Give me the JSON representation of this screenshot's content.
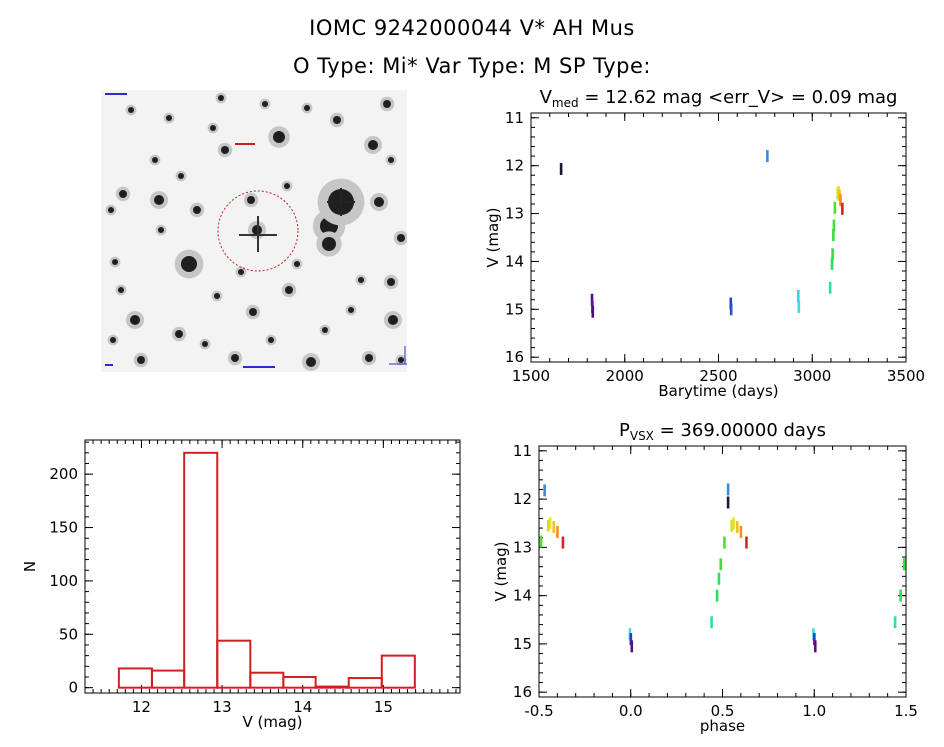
{
  "header": {
    "line1": "IOMC 9242000044    V* AH Mus",
    "line2": "O Type: Mi*   Var Type: M   SP Type:"
  },
  "colors": {
    "histogram": "#d21f1f",
    "aperture": "#c81e1e",
    "sky_labels": "#2b2bd6"
  },
  "chart_data": [
    {
      "type": "scatter",
      "panel": "light-curve",
      "title": "V_med = 12.62 mag <err_V> = 0.09 mag",
      "title_parts": {
        "prefix": "V",
        "sub": "med",
        "rest": " = 12.62 mag <err_V> = 0.09 mag"
      },
      "xlabel": "Barytime (days)",
      "ylabel": "V (mag)",
      "xlim": [
        1500,
        3500
      ],
      "ylim": [
        16.1,
        10.9
      ],
      "y_inverted": true,
      "xticks": [
        1500,
        2000,
        2500,
        3000,
        3500
      ],
      "yticks": [
        11,
        12,
        13,
        14,
        15,
        16
      ],
      "points": [
        {
          "x": 1660,
          "y": 12.07,
          "c": "#1a1a2e"
        },
        {
          "x": 1825,
          "y": 14.8,
          "c": "#5a0a8c"
        },
        {
          "x": 1827,
          "y": 14.95,
          "c": "#6a14a0"
        },
        {
          "x": 1829,
          "y": 15.05,
          "c": "#4b0c80"
        },
        {
          "x": 2565,
          "y": 14.88,
          "c": "#1d44b8"
        },
        {
          "x": 2567,
          "y": 15.0,
          "c": "#2a50c8"
        },
        {
          "x": 2760,
          "y": 11.8,
          "c": "#3a8ad8"
        },
        {
          "x": 2925,
          "y": 14.72,
          "c": "#35d0e0"
        },
        {
          "x": 2928,
          "y": 14.95,
          "c": "#40d8e8"
        },
        {
          "x": 3095,
          "y": 14.55,
          "c": "#30e0a0"
        },
        {
          "x": 3105,
          "y": 14.05,
          "c": "#28e060"
        },
        {
          "x": 3108,
          "y": 13.85,
          "c": "#30e050"
        },
        {
          "x": 3112,
          "y": 13.45,
          "c": "#38e040"
        },
        {
          "x": 3115,
          "y": 13.25,
          "c": "#40e038"
        },
        {
          "x": 3120,
          "y": 12.88,
          "c": "#50e030"
        },
        {
          "x": 3135,
          "y": 12.58,
          "c": "#c8e020"
        },
        {
          "x": 3140,
          "y": 12.55,
          "c": "#f0e020"
        },
        {
          "x": 3145,
          "y": 12.62,
          "c": "#f0c020"
        },
        {
          "x": 3150,
          "y": 12.72,
          "c": "#f09020"
        },
        {
          "x": 3160,
          "y": 12.9,
          "c": "#e02020"
        }
      ]
    },
    {
      "type": "bar",
      "panel": "histogram",
      "xlabel": "V (mag)",
      "ylabel": "N",
      "xlim": [
        11.3,
        15.95
      ],
      "ylim": [
        -5,
        232
      ],
      "xticks": [
        12,
        13,
        14,
        15
      ],
      "yticks": [
        0,
        50,
        100,
        150,
        200
      ],
      "bins": [
        {
          "x0": 11.72,
          "x1": 12.13,
          "n": 18
        },
        {
          "x0": 12.13,
          "x1": 12.53,
          "n": 16
        },
        {
          "x0": 12.53,
          "x1": 12.94,
          "n": 220
        },
        {
          "x0": 12.94,
          "x1": 13.35,
          "n": 44
        },
        {
          "x0": 13.35,
          "x1": 13.76,
          "n": 14
        },
        {
          "x0": 13.76,
          "x1": 14.16,
          "n": 10
        },
        {
          "x0": 14.16,
          "x1": 14.57,
          "n": 1
        },
        {
          "x0": 14.57,
          "x1": 14.98,
          "n": 9
        },
        {
          "x0": 14.98,
          "x1": 15.39,
          "n": 30
        }
      ]
    },
    {
      "type": "scatter",
      "panel": "phase-curve",
      "title": "P_vsx = 369.00000 days",
      "title_parts": {
        "prefix": "P",
        "sub": "VSX",
        "rest": " = 369.00000 days"
      },
      "xlabel": "phase",
      "ylabel": "V (mag)",
      "xlim": [
        -0.5,
        1.5
      ],
      "ylim": [
        16.1,
        10.9
      ],
      "y_inverted": true,
      "xticks": [
        -0.5,
        0.0,
        0.5,
        1.0,
        1.5
      ],
      "yticks": [
        11,
        12,
        13,
        14,
        15,
        16
      ],
      "points": [
        {
          "x": -0.47,
          "y": 11.82,
          "c": "#3a8ad8"
        },
        {
          "x": -0.49,
          "y": 12.88,
          "c": "#50e030"
        },
        {
          "x": -0.45,
          "y": 12.55,
          "c": "#c8e020"
        },
        {
          "x": -0.44,
          "y": 12.5,
          "c": "#f0e020"
        },
        {
          "x": -0.42,
          "y": 12.58,
          "c": "#f0c020"
        },
        {
          "x": -0.4,
          "y": 12.68,
          "c": "#f09020"
        },
        {
          "x": -0.37,
          "y": 12.9,
          "c": "#e02020"
        },
        {
          "x": -0.005,
          "y": 14.8,
          "c": "#40d8e8"
        },
        {
          "x": 0.0,
          "y": 14.9,
          "c": "#1d44b8"
        },
        {
          "x": 0.005,
          "y": 15.05,
          "c": "#5a0a8c"
        },
        {
          "x": 0.44,
          "y": 14.55,
          "c": "#30e0a0"
        },
        {
          "x": 0.47,
          "y": 14.0,
          "c": "#28e060"
        },
        {
          "x": 0.48,
          "y": 13.65,
          "c": "#30e050"
        },
        {
          "x": 0.49,
          "y": 13.35,
          "c": "#38e040"
        },
        {
          "x": 0.51,
          "y": 12.9,
          "c": "#50e030"
        },
        {
          "x": 0.53,
          "y": 11.8,
          "c": "#3a8ad8"
        },
        {
          "x": 0.53,
          "y": 12.07,
          "c": "#1a1a2e"
        },
        {
          "x": 0.55,
          "y": 12.55,
          "c": "#c8e020"
        },
        {
          "x": 0.56,
          "y": 12.5,
          "c": "#f0e020"
        },
        {
          "x": 0.58,
          "y": 12.58,
          "c": "#f0c020"
        },
        {
          "x": 0.6,
          "y": 12.68,
          "c": "#f09020"
        },
        {
          "x": 0.63,
          "y": 12.9,
          "c": "#e02020"
        },
        {
          "x": 0.995,
          "y": 14.8,
          "c": "#40d8e8"
        },
        {
          "x": 1.0,
          "y": 14.9,
          "c": "#1d44b8"
        },
        {
          "x": 1.005,
          "y": 15.05,
          "c": "#5a0a8c"
        },
        {
          "x": 1.44,
          "y": 14.55,
          "c": "#30e0a0"
        },
        {
          "x": 1.47,
          "y": 14.0,
          "c": "#28e060"
        },
        {
          "x": 1.49,
          "y": 13.35,
          "c": "#38e040"
        }
      ]
    }
  ]
}
